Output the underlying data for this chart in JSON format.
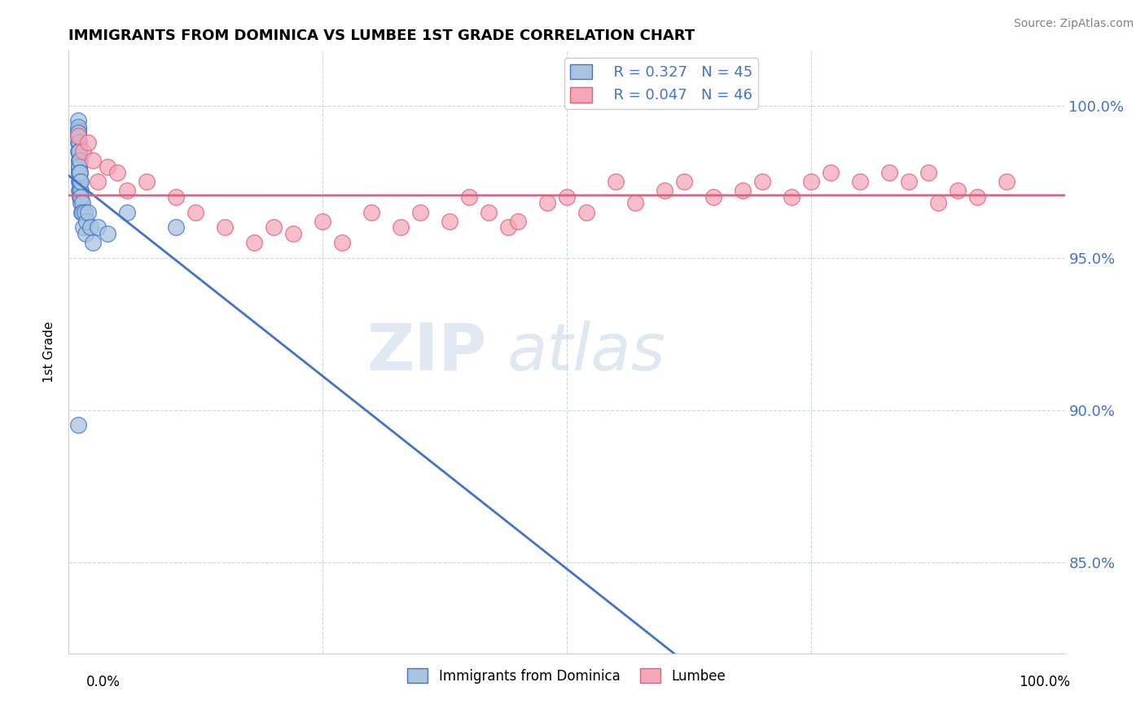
{
  "title": "IMMIGRANTS FROM DOMINICA VS LUMBEE 1ST GRADE CORRELATION CHART",
  "source": "Source: ZipAtlas.com",
  "ylabel": "1st Grade",
  "legend_blue_label": "Immigrants from Dominica",
  "legend_pink_label": "Lumbee",
  "r_blue": 0.327,
  "n_blue": 45,
  "r_pink": 0.047,
  "n_pink": 46,
  "blue_color": "#a8c4e0",
  "blue_line_color": "#4472C4",
  "pink_color": "#f4a7b9",
  "pink_line_color": "#e06080",
  "ylim": [
    82.0,
    101.8
  ],
  "xlim": [
    -1.0,
    101.0
  ],
  "watermark_zip": "ZIP",
  "watermark_atlas": "atlas",
  "blue_x": [
    0.0,
    0.0,
    0.0,
    0.0,
    0.0,
    0.0,
    0.01,
    0.01,
    0.02,
    0.02,
    0.03,
    0.03,
    0.04,
    0.05,
    0.05,
    0.06,
    0.06,
    0.07,
    0.08,
    0.09,
    0.1,
    0.1,
    0.12,
    0.13,
    0.15,
    0.15,
    0.17,
    0.18,
    0.2,
    0.22,
    0.25,
    0.3,
    0.35,
    0.4,
    0.5,
    0.6,
    0.7,
    0.8,
    1.0,
    1.2,
    1.5,
    2.0,
    3.0,
    5.0,
    10.0
  ],
  "blue_y": [
    89.5,
    99.5,
    99.2,
    98.8,
    99.0,
    99.3,
    99.1,
    98.5,
    98.8,
    98.2,
    98.5,
    97.8,
    98.0,
    98.2,
    97.5,
    98.0,
    97.2,
    97.8,
    98.5,
    98.0,
    97.5,
    98.2,
    97.8,
    97.2,
    97.5,
    97.0,
    97.8,
    97.2,
    97.5,
    96.8,
    97.0,
    96.5,
    96.8,
    96.5,
    96.0,
    96.5,
    95.8,
    96.2,
    96.5,
    96.0,
    95.5,
    96.0,
    95.8,
    96.5,
    96.0
  ],
  "pink_x": [
    0.0,
    0.5,
    1.0,
    1.5,
    2.0,
    3.0,
    4.0,
    5.0,
    7.0,
    10.0,
    12.0,
    15.0,
    18.0,
    20.0,
    22.0,
    25.0,
    27.0,
    30.0,
    33.0,
    35.0,
    38.0,
    40.0,
    42.0,
    44.0,
    45.0,
    48.0,
    50.0,
    52.0,
    55.0,
    57.0,
    60.0,
    62.0,
    65.0,
    68.0,
    70.0,
    73.0,
    75.0,
    77.0,
    80.0,
    83.0,
    85.0,
    87.0,
    88.0,
    90.0,
    92.0,
    95.0
  ],
  "pink_y": [
    99.0,
    98.5,
    98.8,
    98.2,
    97.5,
    98.0,
    97.8,
    97.2,
    97.5,
    97.0,
    96.5,
    96.0,
    95.5,
    96.0,
    95.8,
    96.2,
    95.5,
    96.5,
    96.0,
    96.5,
    96.2,
    97.0,
    96.5,
    96.0,
    96.2,
    96.8,
    97.0,
    96.5,
    97.5,
    96.8,
    97.2,
    97.5,
    97.0,
    97.2,
    97.5,
    97.0,
    97.5,
    97.8,
    97.5,
    97.8,
    97.5,
    97.8,
    96.8,
    97.2,
    97.0,
    97.5
  ]
}
